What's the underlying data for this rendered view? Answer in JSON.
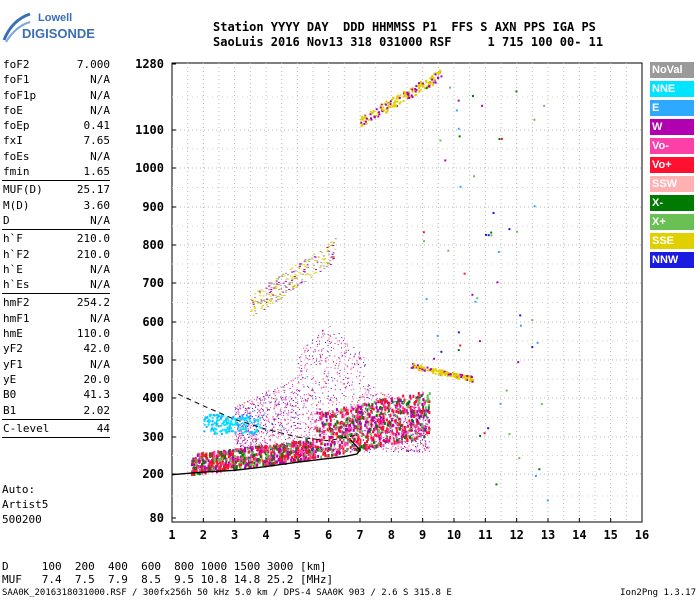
{
  "logo": {
    "line1": "Lowell",
    "line2": "DIGISONDE"
  },
  "header": {
    "line1": "Station YYYY DAY  DDD HHMMSS P1  FFS S AXN PPS IGA PS",
    "line2": "SaoLuis 2016 Nov13 318 031000 RSF     1 715 100 00- 11"
  },
  "params": {
    "group1": [
      {
        "name": "foF2",
        "value": "7.000"
      },
      {
        "name": "foF1",
        "value": "N/A"
      },
      {
        "name": "foF1p",
        "value": "N/A"
      },
      {
        "name": "foE",
        "value": "N/A"
      },
      {
        "name": "foEp",
        "value": "0.41"
      },
      {
        "name": "fxI",
        "value": "7.65"
      },
      {
        "name": "foEs",
        "value": "N/A"
      },
      {
        "name": "fmin",
        "value": "1.65"
      }
    ],
    "group2": [
      {
        "name": "MUF(D)",
        "value": "25.17"
      },
      {
        "name": "M(D)",
        "value": "3.60"
      },
      {
        "name": "D",
        "value": "N/A"
      }
    ],
    "group3": [
      {
        "name": "h`F",
        "value": "210.0"
      },
      {
        "name": "h`F2",
        "value": "210.0"
      },
      {
        "name": "h`E",
        "value": "N/A"
      },
      {
        "name": "h`Es",
        "value": "N/A"
      }
    ],
    "group4": [
      {
        "name": "hmF2",
        "value": "254.2"
      },
      {
        "name": "hmF1",
        "value": "N/A"
      },
      {
        "name": "hmE",
        "value": "110.0"
      },
      {
        "name": "yF2",
        "value": "42.0"
      },
      {
        "name": "yF1",
        "value": "N/A"
      },
      {
        "name": "yE",
        "value": "20.0"
      },
      {
        "name": "B0",
        "value": "41.3"
      },
      {
        "name": "B1",
        "value": "2.02"
      }
    ],
    "clevel": {
      "name": "C-level",
      "value": "44"
    }
  },
  "auto": {
    "line1": "Auto:",
    "line2": "Artist5",
    "line3": "500200"
  },
  "muf_table": {
    "d_line": "D     100  200  400  600  800 1000 1500 3000 [km]",
    "muf_line": "MUF   7.4  7.5  7.9  8.5  9.5 10.8 14.8 25.2 [MHz]"
  },
  "footer": {
    "left": "SAA0K_2016318031000.RSF / 300fx256h 50 kHz 5.0 km / DPS-4 SAA0K 903 / 2.6 S 315.8 E",
    "right": "Ion2Png 1.3.17"
  },
  "legend": [
    {
      "label": "NoVal",
      "color": "#9a9a9a"
    },
    {
      "label": "NNE",
      "color": "#00e5ff"
    },
    {
      "label": "E",
      "color": "#2fa8ff"
    },
    {
      "label": "W",
      "color": "#b000b0"
    },
    {
      "label": "Vo-",
      "color": "#ff3fa8"
    },
    {
      "label": "Vo+",
      "color": "#ff1030"
    },
    {
      "label": "SSW",
      "color": "#ffb0b0"
    },
    {
      "label": "X-",
      "color": "#007a00"
    },
    {
      "label": "X+",
      "color": "#6abf55"
    },
    {
      "label": "SSE",
      "color": "#e0d000"
    },
    {
      "label": "NNW",
      "color": "#1a1ae0"
    }
  ],
  "chart_data": {
    "type": "scatter",
    "xlabel": "",
    "ylabel": "",
    "xlim": [
      1,
      16
    ],
    "ylim": [
      80,
      1280
    ],
    "x_ticks": [
      "1",
      "2",
      "3",
      "4",
      "5",
      "6",
      "7",
      "8",
      "9",
      "10",
      "11",
      "12",
      "13",
      "14",
      "15",
      "16"
    ],
    "y_ticks": [
      "80",
      "200",
      "300",
      "400",
      "500",
      "600",
      "700",
      "800",
      "900",
      "1000",
      "1100",
      "1280"
    ],
    "y_tick_values": [
      80,
      200,
      300,
      400,
      500,
      600,
      700,
      800,
      900,
      1000,
      1100,
      1280
    ],
    "grid": true,
    "traces": [
      {
        "name": "o-trace lower F",
        "x_range": [
          1.6,
          9.2
        ],
        "y_range": [
          205,
          330
        ],
        "density": "high",
        "colors": [
          "#ff1030",
          "#007a00",
          "#ff3fa8",
          "#6abf55",
          "#b000b0"
        ]
      },
      {
        "name": "spread F",
        "x_range": [
          3.0,
          9.2
        ],
        "y_range": [
          280,
          600
        ],
        "density": "high",
        "colors": [
          "#b000b0",
          "#ff1030",
          "#ff3fa8",
          "#1a1ae0"
        ]
      },
      {
        "name": "NNE echoes",
        "x_range": [
          2.0,
          3.8
        ],
        "y_range": [
          310,
          360
        ],
        "density": "medium",
        "colors": [
          "#00e5ff",
          "#2fa8ff"
        ]
      },
      {
        "name": "second hop",
        "x_range": [
          3.5,
          6.2
        ],
        "y_range": [
          620,
          860
        ],
        "density": "low",
        "colors": [
          "#e0d000",
          "#b000b0"
        ]
      },
      {
        "name": "multi hop",
        "x_range": [
          7.0,
          9.5
        ],
        "y_range": [
          1100,
          1260
        ],
        "density": "low",
        "colors": [
          "#e0d000",
          "#b000b0"
        ]
      },
      {
        "name": "oblique",
        "x_range": [
          9.0,
          10.6
        ],
        "y_range": [
          430,
          480
        ],
        "density": "medium",
        "colors": [
          "#e0d000",
          "#b000b0"
        ]
      }
    ],
    "profile_curve": {
      "description": "black electron density profile",
      "x": [
        1.0,
        2.0,
        3.0,
        4.0,
        5.0,
        5.8,
        6.5,
        6.9
      ],
      "y": [
        198,
        205,
        210,
        220,
        232,
        240,
        247,
        254
      ]
    },
    "dashed_curve": {
      "x": [
        1.2,
        2.0,
        3.0,
        4.0,
        5.0,
        6.0,
        6.9
      ],
      "y": [
        410,
        380,
        345,
        320,
        300,
        290,
        305
      ]
    }
  }
}
